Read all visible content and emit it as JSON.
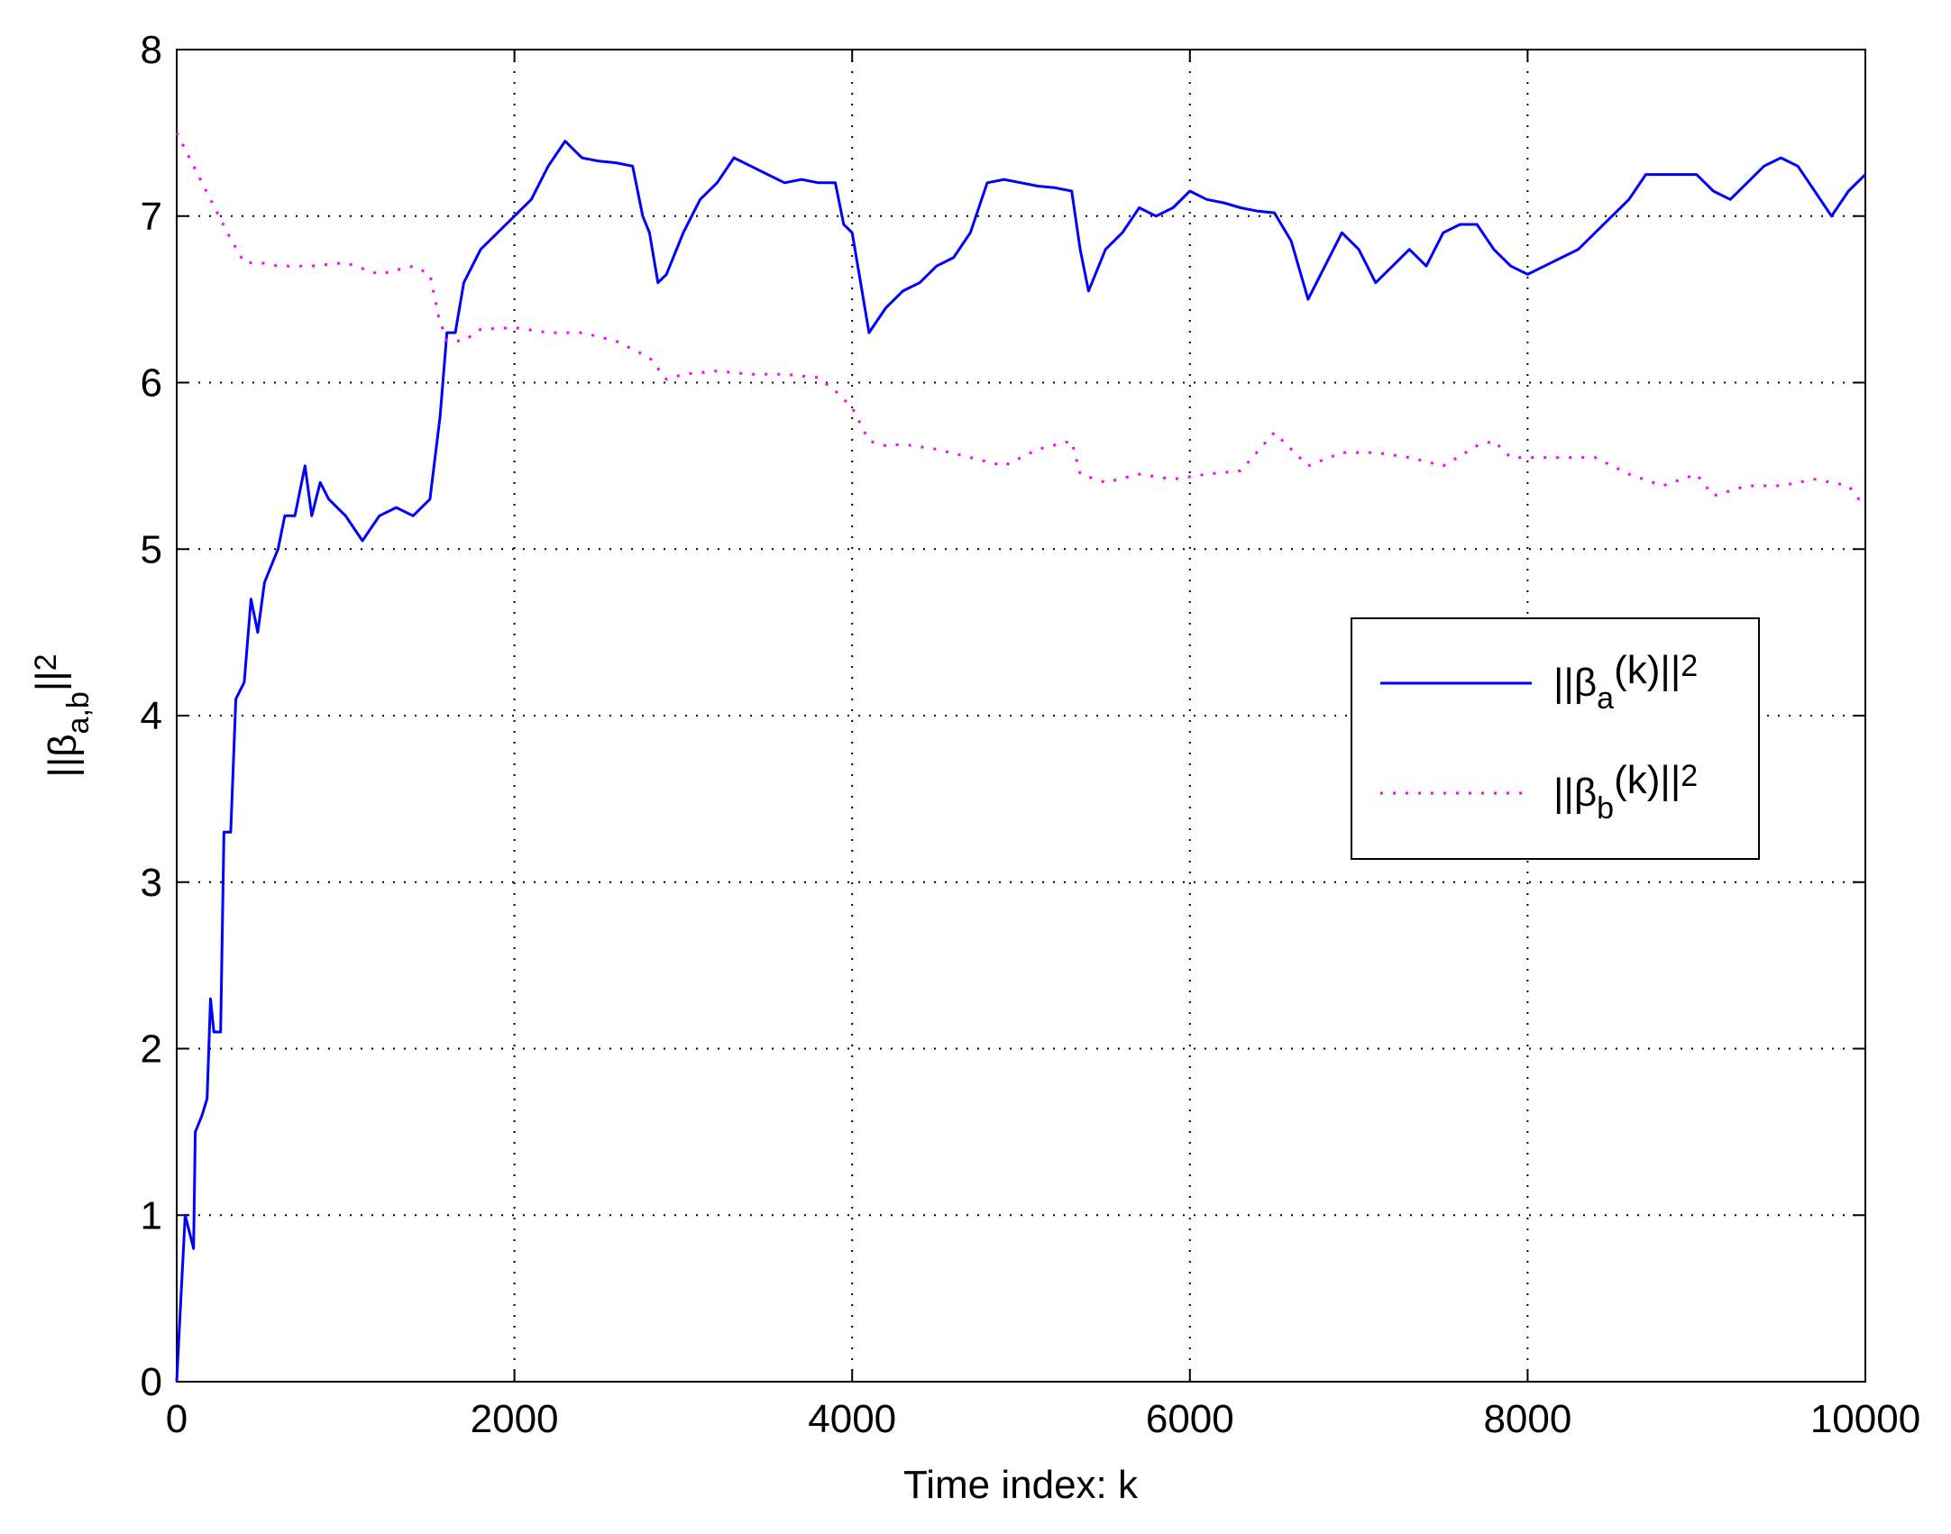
{
  "chart_data": {
    "type": "line",
    "xlabel": "Time index: k",
    "ylabel": [
      "||β",
      "a,b",
      "||",
      "2"
    ],
    "xlim": [
      0,
      10000
    ],
    "xticks": [
      0,
      2000,
      4000,
      6000,
      8000,
      10000
    ],
    "ylim": [
      0,
      8
    ],
    "yticks": [
      0,
      1,
      2,
      3,
      4,
      5,
      6,
      7,
      8
    ],
    "grid": true,
    "legend": "right",
    "series": [
      {
        "name": [
          "||β",
          "a",
          "(k)||",
          "2"
        ],
        "color": "#0000ff",
        "style": "solid",
        "x": [
          0,
          20,
          50,
          100,
          110,
          150,
          180,
          200,
          220,
          260,
          280,
          320,
          350,
          400,
          440,
          480,
          520,
          560,
          600,
          640,
          700,
          760,
          800,
          850,
          900,
          1000,
          1100,
          1200,
          1300,
          1400,
          1500,
          1560,
          1600,
          1650,
          1700,
          1800,
          1900,
          2000,
          2100,
          2200,
          2300,
          2400,
          2500,
          2600,
          2700,
          2760,
          2800,
          2850,
          2900,
          3000,
          3100,
          3200,
          3300,
          3400,
          3500,
          3600,
          3700,
          3800,
          3900,
          3950,
          4000,
          4050,
          4100,
          4200,
          4300,
          4400,
          4500,
          4600,
          4700,
          4800,
          4900,
          5000,
          5100,
          5200,
          5300,
          5350,
          5400,
          5500,
          5600,
          5700,
          5800,
          5900,
          6000,
          6100,
          6200,
          6300,
          6400,
          6500,
          6600,
          6700,
          6800,
          6900,
          7000,
          7100,
          7200,
          7300,
          7400,
          7500,
          7600,
          7700,
          7800,
          7900,
          8000,
          8100,
          8200,
          8300,
          8400,
          8500,
          8600,
          8700,
          8800,
          8900,
          9000,
          9100,
          9200,
          9300,
          9400,
          9500,
          9600,
          9700,
          9800,
          9900,
          10000
        ],
        "values": [
          0,
          0.4,
          1.0,
          0.8,
          1.5,
          1.6,
          1.7,
          2.3,
          2.1,
          2.1,
          3.3,
          3.3,
          4.1,
          4.2,
          4.7,
          4.5,
          4.8,
          4.9,
          5.0,
          5.2,
          5.2,
          5.5,
          5.2,
          5.4,
          5.3,
          5.2,
          5.05,
          5.2,
          5.25,
          5.2,
          5.3,
          5.8,
          6.3,
          6.3,
          6.6,
          6.8,
          6.9,
          7.0,
          7.1,
          7.3,
          7.45,
          7.35,
          7.33,
          7.32,
          7.3,
          7.0,
          6.9,
          6.6,
          6.65,
          6.9,
          7.1,
          7.2,
          7.35,
          7.3,
          7.25,
          7.2,
          7.22,
          7.2,
          7.2,
          6.95,
          6.9,
          6.6,
          6.3,
          6.45,
          6.55,
          6.6,
          6.7,
          6.75,
          6.9,
          7.2,
          7.22,
          7.2,
          7.18,
          7.17,
          7.15,
          6.8,
          6.55,
          6.8,
          6.9,
          7.05,
          7.0,
          7.05,
          7.15,
          7.1,
          7.08,
          7.05,
          7.03,
          7.02,
          6.85,
          6.5,
          6.7,
          6.9,
          6.8,
          6.6,
          6.7,
          6.8,
          6.7,
          6.9,
          6.95,
          6.95,
          6.8,
          6.7,
          6.65,
          6.7,
          6.75,
          6.8,
          6.9,
          7.0,
          7.1,
          7.25,
          7.25,
          7.25,
          7.25,
          7.15,
          7.1,
          7.2,
          7.3,
          7.35,
          7.3,
          7.15,
          7.0,
          7.15,
          7.25
        ]
      },
      {
        "name": [
          "||β",
          "b",
          "(k)||",
          "2"
        ],
        "color": "#ff00ff",
        "style": "dotted",
        "x": [
          0,
          50,
          100,
          200,
          300,
          400,
          500,
          600,
          800,
          1000,
          1200,
          1400,
          1500,
          1550,
          1600,
          1700,
          1800,
          2000,
          2200,
          2400,
          2600,
          2800,
          2900,
          3000,
          3200,
          3400,
          3600,
          3800,
          3900,
          4000,
          4100,
          4200,
          4300,
          4500,
          4700,
          4900,
          5100,
          5300,
          5350,
          5500,
          5700,
          5900,
          6100,
          6300,
          6500,
          6600,
          6700,
          6900,
          7100,
          7300,
          7500,
          7700,
          7800,
          7900,
          8000,
          8200,
          8400,
          8600,
          8800,
          9000,
          9100,
          9300,
          9500,
          9700,
          9900,
          10000
        ],
        "values": [
          7.5,
          7.4,
          7.3,
          7.1,
          6.9,
          6.72,
          6.72,
          6.7,
          6.7,
          6.72,
          6.65,
          6.7,
          6.65,
          6.4,
          6.25,
          6.25,
          6.32,
          6.33,
          6.3,
          6.3,
          6.25,
          6.15,
          6.02,
          6.05,
          6.07,
          6.05,
          6.05,
          6.03,
          5.95,
          5.85,
          5.65,
          5.62,
          5.63,
          5.6,
          5.55,
          5.5,
          5.6,
          5.65,
          5.45,
          5.4,
          5.45,
          5.42,
          5.45,
          5.47,
          5.7,
          5.6,
          5.5,
          5.58,
          5.58,
          5.55,
          5.5,
          5.62,
          5.65,
          5.55,
          5.55,
          5.55,
          5.55,
          5.45,
          5.38,
          5.45,
          5.32,
          5.38,
          5.38,
          5.42,
          5.38,
          5.25
        ]
      }
    ]
  }
}
